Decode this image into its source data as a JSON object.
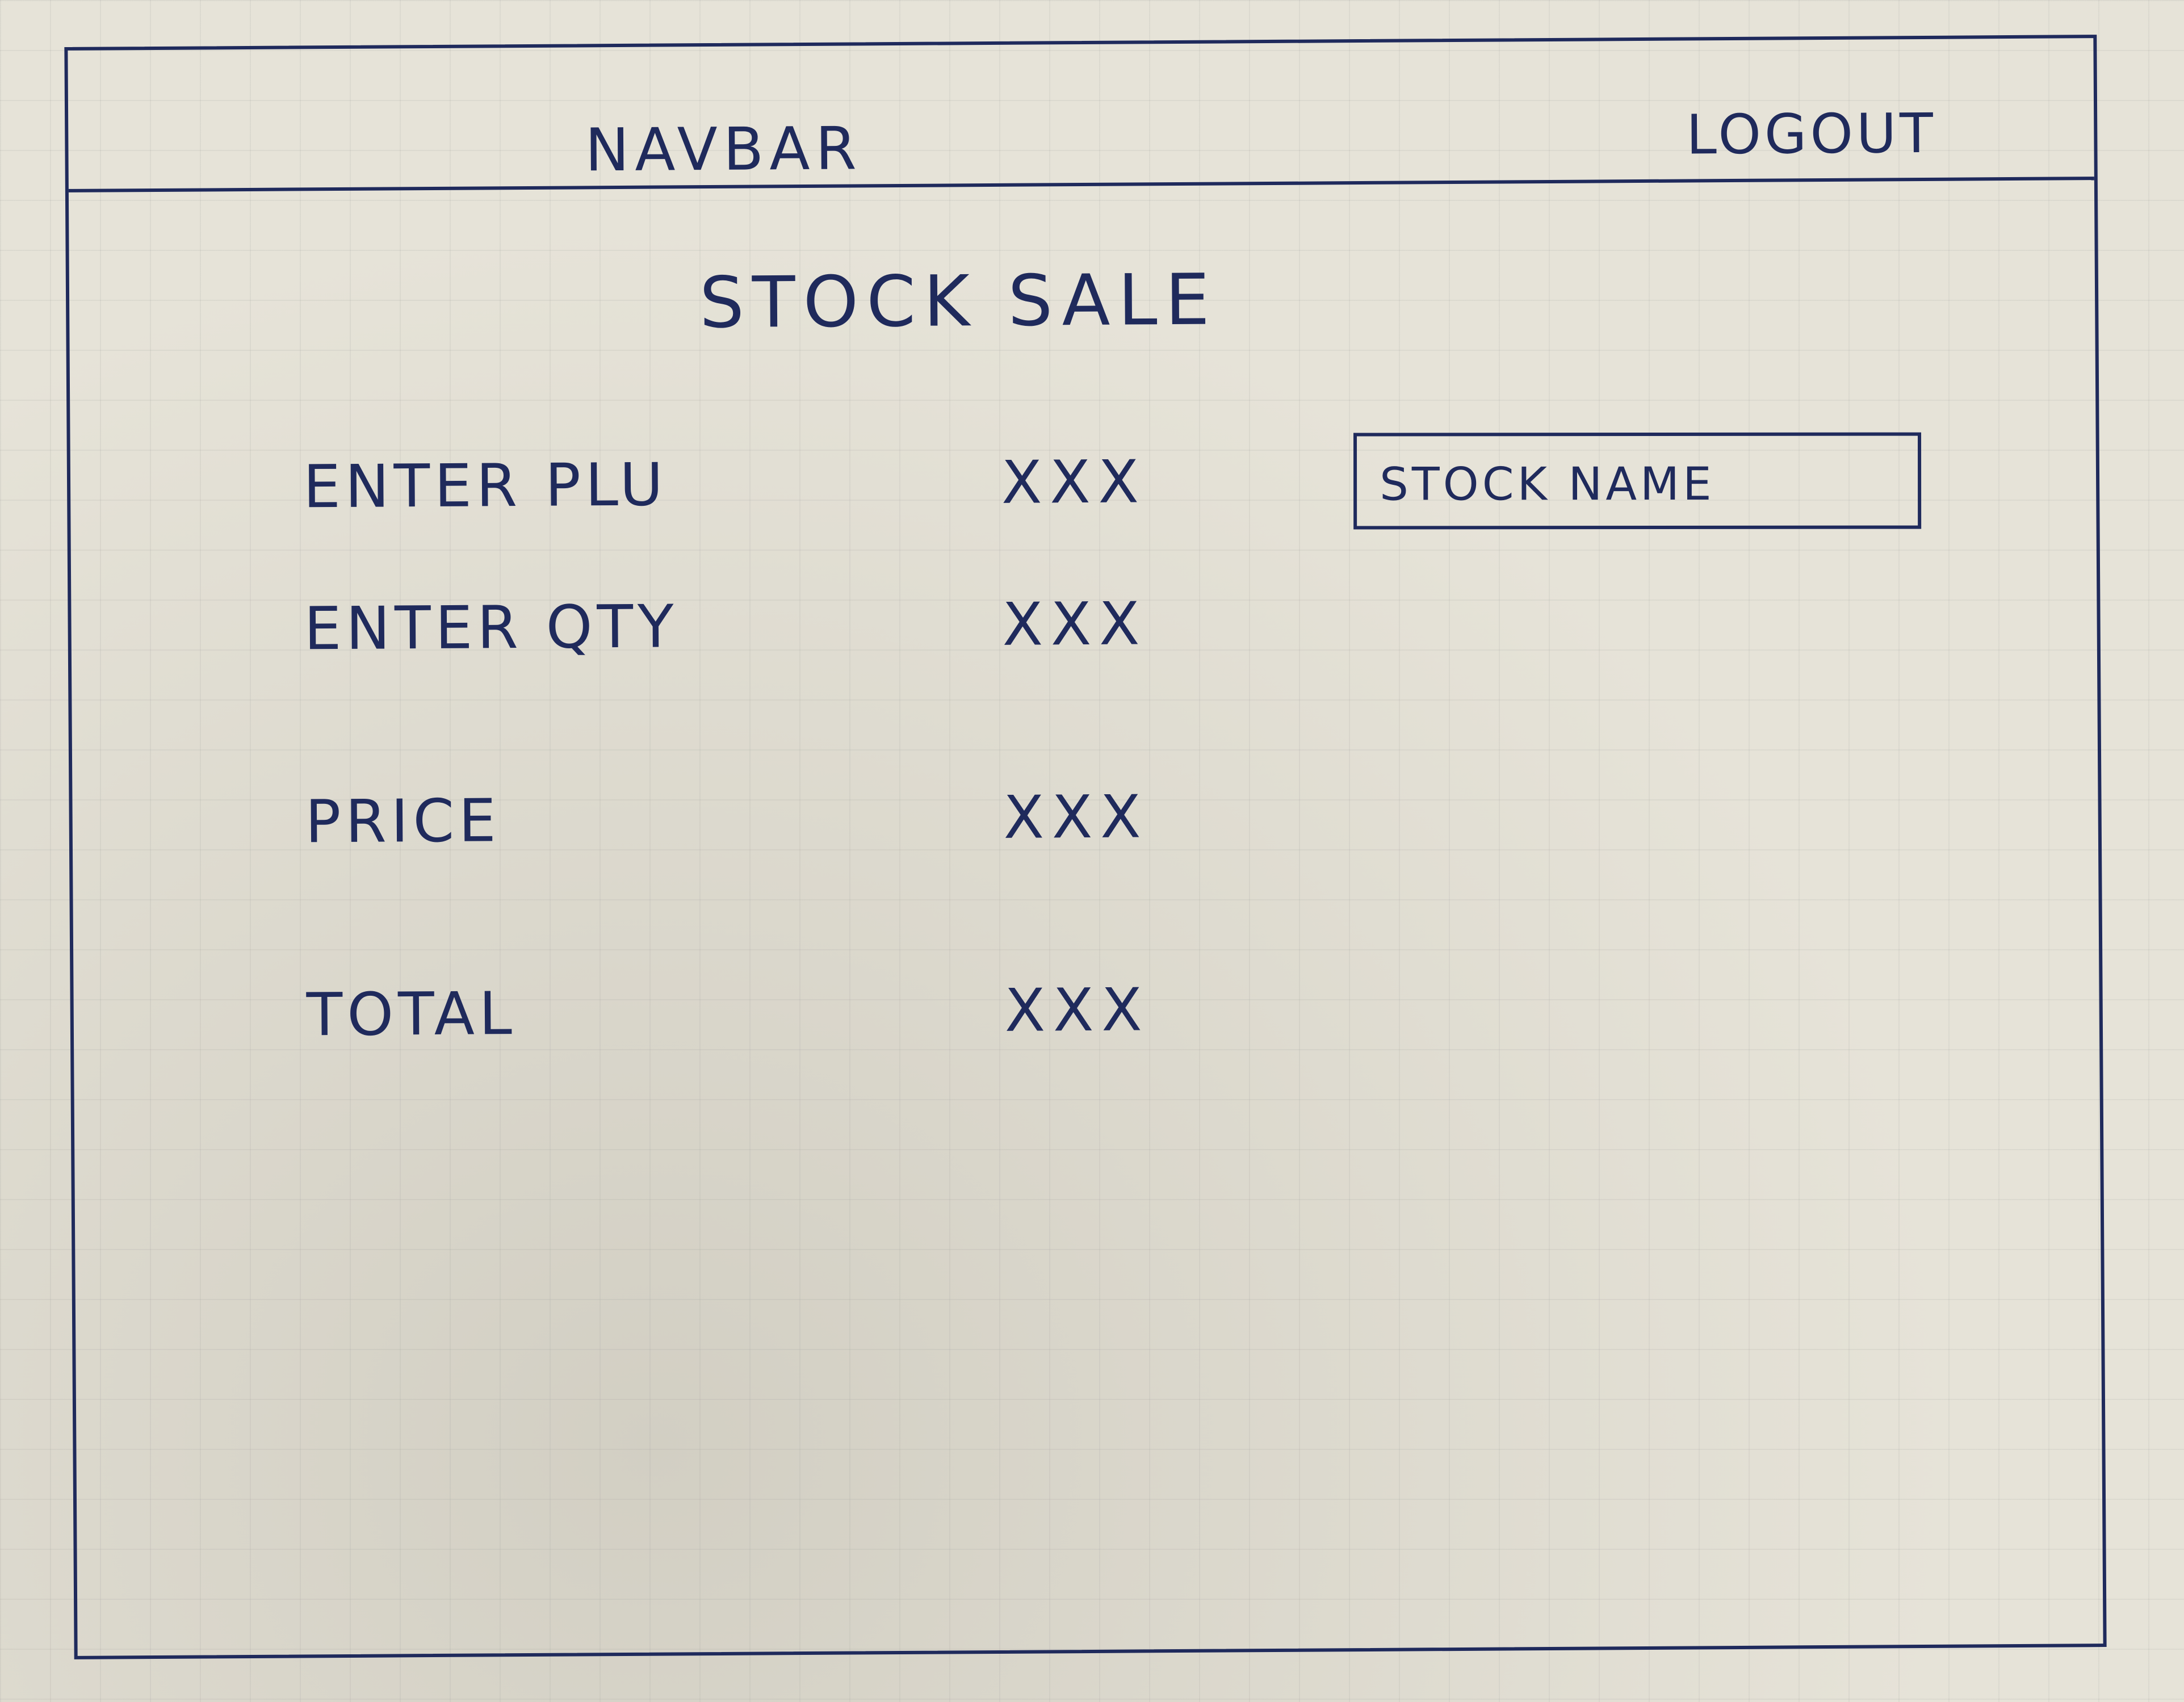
{
  "navbar": {
    "title": "NAVBAR",
    "logout_label": "LOGOUT"
  },
  "page": {
    "title": "STOCK SALE"
  },
  "form": {
    "rows": [
      {
        "label": "ENTER PLU",
        "value": "XXX"
      },
      {
        "label": "ENTER QTY",
        "value": "XXX"
      },
      {
        "label": "PRICE",
        "value": "XXX"
      },
      {
        "label": "TOTAL",
        "value": "XXX"
      }
    ]
  },
  "stock_name_field": {
    "value": "STOCK NAME"
  },
  "colors": {
    "ink": "#1f2a5c",
    "paper": "#e6e3d8"
  }
}
